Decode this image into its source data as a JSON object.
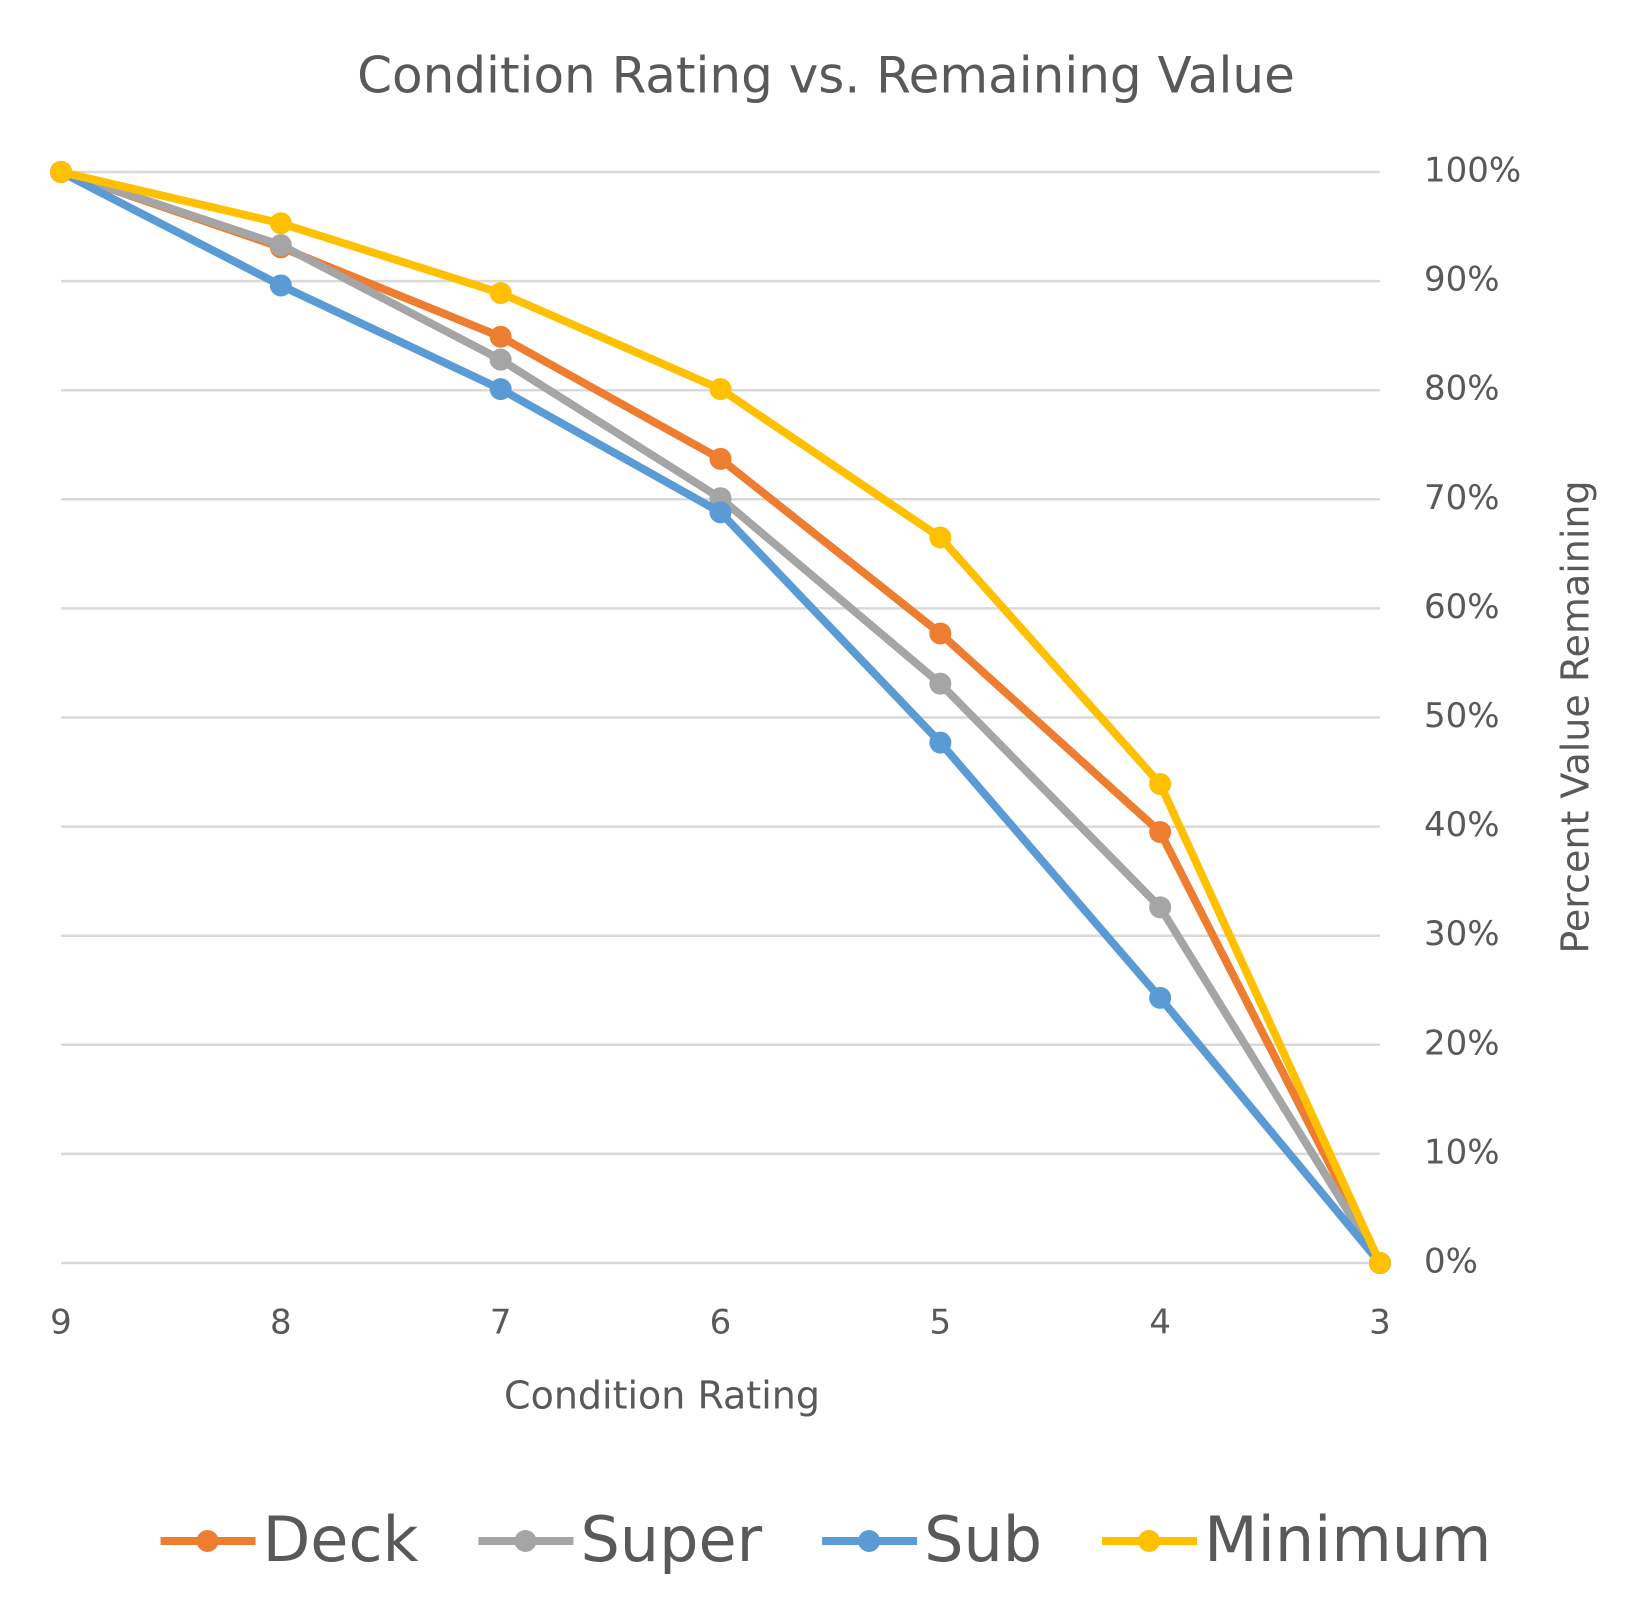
{
  "chart_data": {
    "type": "line",
    "title": "Condition Rating vs. Remaining Value",
    "x_label": "Condition Rating",
    "y_label": "Percent Value Remaining",
    "categories": [
      "9",
      "8",
      "7",
      "6",
      "5",
      "4",
      "3"
    ],
    "series": [
      {
        "name": "Deck",
        "color": "#ED7D31",
        "values": [
          100,
          93.1,
          84.9,
          73.7,
          57.7,
          39.5,
          0
        ]
      },
      {
        "name": "Super",
        "color": "#A5A5A5",
        "values": [
          100,
          93.3,
          82.8,
          70.1,
          53.1,
          32.6,
          0
        ]
      },
      {
        "name": "Sub",
        "color": "#5B9BD5",
        "values": [
          100,
          89.6,
          80.1,
          68.8,
          47.7,
          24.3,
          0
        ]
      },
      {
        "name": "Minimum",
        "color": "#FFC000",
        "values": [
          100,
          95.3,
          88.9,
          80.1,
          66.5,
          43.9,
          0
        ]
      }
    ],
    "ylim": [
      0,
      100
    ],
    "yticks": [
      {
        "value": 0,
        "label": "0%"
      },
      {
        "value": 10,
        "label": "10%"
      },
      {
        "value": 20,
        "label": "20%"
      },
      {
        "value": 30,
        "label": "30%"
      },
      {
        "value": 40,
        "label": "40%"
      },
      {
        "value": 50,
        "label": "50%"
      },
      {
        "value": 60,
        "label": "60%"
      },
      {
        "value": 70,
        "label": "70%"
      },
      {
        "value": 80,
        "label": "80%"
      },
      {
        "value": 90,
        "label": "90%"
      },
      {
        "value": 100,
        "label": "100%"
      }
    ],
    "grid": true,
    "legend": "bottom"
  }
}
